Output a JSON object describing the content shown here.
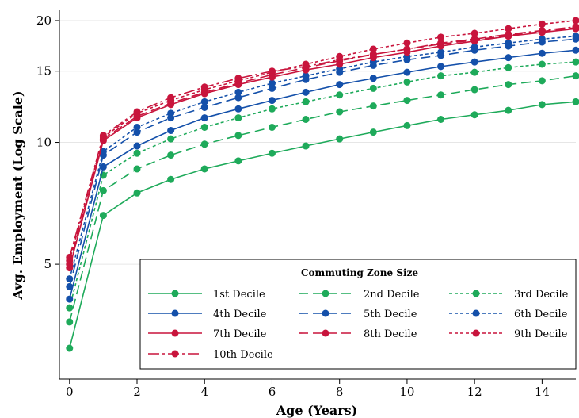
{
  "chart_data": {
    "type": "line",
    "xlabel": "Age (Years)",
    "ylabel": "Avg. Employment (Log Scale)",
    "yscale": "log",
    "xlim": [
      -0.3,
      15
    ],
    "ylim": [
      2.6,
      21.3
    ],
    "xticks": [
      0,
      2,
      4,
      6,
      8,
      10,
      12,
      14
    ],
    "yticks": [
      5,
      10,
      15,
      20
    ],
    "grid": "horizontal",
    "x": [
      0,
      1,
      2,
      3,
      4,
      5,
      6,
      7,
      8,
      9,
      10,
      11,
      12,
      13,
      14,
      15
    ],
    "legend": {
      "title": "Commuting Zone Size",
      "placement": "bottom-right",
      "columns": 3
    },
    "colors": {
      "green": "#1eaa5a",
      "blue": "#1450aa",
      "red": "#c8143c"
    },
    "series": [
      {
        "name": "1st Decile",
        "color": "#1eaa5a",
        "dash": "solid",
        "values": [
          3.1,
          6.6,
          7.5,
          8.1,
          8.6,
          9.0,
          9.4,
          9.8,
          10.2,
          10.6,
          11.0,
          11.4,
          11.7,
          12.0,
          12.4,
          12.6
        ]
      },
      {
        "name": "2nd Decile",
        "color": "#1eaa5a",
        "dash": "long",
        "values": [
          3.6,
          7.6,
          8.6,
          9.3,
          9.9,
          10.4,
          10.9,
          11.4,
          11.9,
          12.3,
          12.7,
          13.1,
          13.5,
          13.9,
          14.2,
          14.6
        ]
      },
      {
        "name": "3rd Decile",
        "color": "#1eaa5a",
        "dash": "short",
        "values": [
          3.9,
          8.3,
          9.4,
          10.2,
          10.9,
          11.5,
          12.1,
          12.6,
          13.1,
          13.6,
          14.1,
          14.6,
          14.9,
          15.3,
          15.6,
          15.8
        ]
      },
      {
        "name": "4th Decile",
        "color": "#1450aa",
        "dash": "solid",
        "values": [
          4.1,
          8.7,
          9.8,
          10.7,
          11.5,
          12.1,
          12.7,
          13.3,
          13.9,
          14.4,
          14.9,
          15.4,
          15.8,
          16.2,
          16.6,
          16.9
        ]
      },
      {
        "name": "5th Decile",
        "color": "#1450aa",
        "dash": "long",
        "values": [
          4.4,
          9.3,
          10.6,
          11.5,
          12.2,
          12.9,
          13.6,
          14.3,
          14.9,
          15.5,
          16.0,
          16.4,
          16.9,
          17.3,
          17.7,
          18.0
        ]
      },
      {
        "name": "6th Decile",
        "color": "#1450aa",
        "dash": "short",
        "values": [
          4.6,
          9.5,
          10.9,
          11.8,
          12.6,
          13.3,
          14.0,
          14.6,
          15.2,
          15.8,
          16.3,
          16.7,
          17.2,
          17.6,
          18.0,
          18.3
        ]
      },
      {
        "name": "7th Decile",
        "color": "#c8143c",
        "dash": "solid",
        "values": [
          4.9,
          10.1,
          11.5,
          12.4,
          13.2,
          13.9,
          14.5,
          15.1,
          15.6,
          16.2,
          16.7,
          17.3,
          17.8,
          18.3,
          18.7,
          19.1
        ]
      },
      {
        "name": "8th Decile",
        "color": "#c8143c",
        "dash": "long",
        "values": [
          5.0,
          10.2,
          11.6,
          12.5,
          13.3,
          14.0,
          14.7,
          15.3,
          15.9,
          16.5,
          17.0,
          17.5,
          17.9,
          18.4,
          18.8,
          19.2
        ]
      },
      {
        "name": "9th Decile",
        "color": "#c8143c",
        "dash": "short",
        "values": [
          5.1,
          10.3,
          11.8,
          12.7,
          13.5,
          14.2,
          14.9,
          15.6,
          16.3,
          17.0,
          17.6,
          18.2,
          18.6,
          19.1,
          19.6,
          20.0
        ]
      },
      {
        "name": "10th Decile",
        "color": "#c8143c",
        "dash": "longdot",
        "values": [
          5.2,
          10.4,
          11.9,
          12.9,
          13.7,
          14.4,
          15.0,
          15.4,
          16.0,
          16.5,
          17.0,
          17.6,
          18.0,
          18.5,
          18.9,
          19.3
        ]
      }
    ]
  }
}
